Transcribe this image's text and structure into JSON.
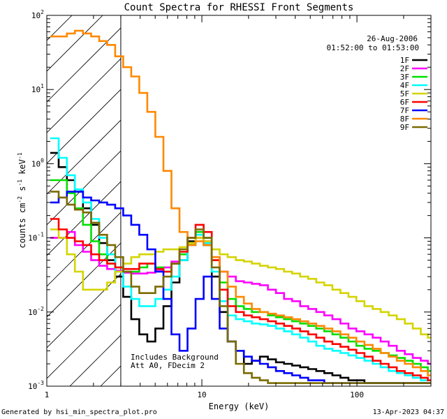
{
  "chart_data": {
    "type": "line",
    "title": "Count Spectra for RHESSI Front Segments",
    "xlabel": "Energy (keV)",
    "ylabel_parts": [
      "counts cm",
      "-2",
      " s",
      "-1",
      " keV",
      "-1"
    ],
    "x_scale": "log",
    "y_scale": "log",
    "xlim": [
      1,
      300
    ],
    "ylim": [
      0.001,
      100
    ],
    "x_ticks": [
      {
        "value": 1,
        "label": "1"
      },
      {
        "value": 10,
        "label": "10"
      },
      {
        "value": 100,
        "label": "100"
      }
    ],
    "y_ticks": [
      {
        "value": 0.001,
        "base": "10",
        "exp": "-3"
      },
      {
        "value": 0.01,
        "base": "10",
        "exp": "-2"
      },
      {
        "value": 0.1,
        "base": "10",
        "exp": "-1"
      },
      {
        "value": 1,
        "base": "10",
        "exp": "0"
      },
      {
        "value": 10,
        "base": "10",
        "exp": "1"
      },
      {
        "value": 100,
        "base": "10",
        "exp": "2"
      }
    ],
    "date": "26-Aug-2006",
    "time_range": "01:52:00 to 01:53:00",
    "hatched_region_keV": [
      1,
      3
    ],
    "annotation_lines": [
      "Includes Background",
      "Att A0, FDecim 2"
    ],
    "energies": [
      1.12,
      1.27,
      1.43,
      1.61,
      1.82,
      2.05,
      2.31,
      2.6,
      2.93,
      3.3,
      3.72,
      4.19,
      4.72,
      5.32,
      6,
      6.76,
      7.62,
      8.58,
      9.67,
      10.9,
      12.3,
      13.8,
      15.6,
      17.6,
      19.8,
      22.3,
      25.1,
      28.3,
      31.9,
      36,
      40.5,
      45.7,
      51.5,
      58,
      65.4,
      73.7,
      83,
      93.6,
      105,
      119,
      134,
      151,
      170,
      192,
      216,
      243,
      274,
      300
    ],
    "series": [
      {
        "name": "1F",
        "color": "#000000",
        "values": [
          1.4,
          0.9,
          0.6,
          0.42,
          0.25,
          0.15,
          0.085,
          0.05,
          0.03,
          0.016,
          0.008,
          0.005,
          0.004,
          0.006,
          0.012,
          0.025,
          0.05,
          0.09,
          0.12,
          0.08,
          0.03,
          0.01,
          0.004,
          0.003,
          0.002,
          0.0022,
          0.0025,
          0.0023,
          0.0021,
          0.002,
          0.0019,
          0.0018,
          0.0017,
          0.0016,
          0.0015,
          0.0014,
          0.0013,
          0.0012,
          0.0012,
          0.0011,
          0.0011,
          0.0011,
          0.0011,
          0.0011,
          0.0011,
          0.0011,
          0.0011,
          0.0011
        ]
      },
      {
        "name": "2F",
        "color": "#ff00ff",
        "values": [
          0.1,
          0.1,
          0.12,
          0.08,
          0.065,
          0.05,
          0.042,
          0.038,
          0.036,
          0.034,
          0.033,
          0.033,
          0.034,
          0.037,
          0.04,
          0.048,
          0.06,
          0.08,
          0.1,
          0.09,
          0.055,
          0.035,
          0.03,
          0.026,
          0.025,
          0.024,
          0.023,
          0.02,
          0.018,
          0.015,
          0.014,
          0.012,
          0.011,
          0.01,
          0.009,
          0.008,
          0.007,
          0.006,
          0.0055,
          0.005,
          0.0045,
          0.004,
          0.0035,
          0.003,
          0.0027,
          0.0024,
          0.0022,
          0.002
        ]
      },
      {
        "name": "3F",
        "color": "#00e000",
        "values": [
          0.6,
          0.6,
          0.4,
          0.25,
          0.15,
          0.09,
          0.06,
          0.045,
          0.04,
          0.035,
          0.035,
          0.04,
          0.045,
          0.04,
          0.035,
          0.045,
          0.06,
          0.085,
          0.12,
          0.1,
          0.05,
          0.025,
          0.015,
          0.012,
          0.011,
          0.01,
          0.01,
          0.009,
          0.0085,
          0.008,
          0.0075,
          0.007,
          0.0065,
          0.006,
          0.0055,
          0.005,
          0.0045,
          0.004,
          0.0035,
          0.0032,
          0.003,
          0.0028,
          0.0026,
          0.0024,
          0.0022,
          0.002,
          0.0018,
          0.0016
        ]
      },
      {
        "name": "4F",
        "color": "#00ffff",
        "values": [
          2.2,
          1.2,
          0.7,
          0.45,
          0.3,
          0.18,
          0.1,
          0.06,
          0.035,
          0.022,
          0.015,
          0.012,
          0.012,
          0.015,
          0.02,
          0.03,
          0.05,
          0.08,
          0.11,
          0.085,
          0.035,
          0.014,
          0.009,
          0.008,
          0.0075,
          0.007,
          0.0068,
          0.0065,
          0.006,
          0.0055,
          0.005,
          0.0045,
          0.004,
          0.0035,
          0.0032,
          0.003,
          0.0028,
          0.0026,
          0.0024,
          0.0022,
          0.002,
          0.0018,
          0.0016,
          0.0015,
          0.0014,
          0.0013,
          0.0012,
          0.0012
        ]
      },
      {
        "name": "5F",
        "color": "#d4d400",
        "values": [
          0.13,
          0.1,
          0.06,
          0.035,
          0.02,
          0.02,
          0.02,
          0.025,
          0.035,
          0.045,
          0.055,
          0.06,
          0.06,
          0.065,
          0.07,
          0.07,
          0.075,
          0.085,
          0.1,
          0.09,
          0.07,
          0.06,
          0.055,
          0.05,
          0.048,
          0.045,
          0.042,
          0.04,
          0.038,
          0.035,
          0.033,
          0.03,
          0.028,
          0.025,
          0.023,
          0.02,
          0.018,
          0.016,
          0.014,
          0.012,
          0.011,
          0.01,
          0.009,
          0.008,
          0.007,
          0.006,
          0.005,
          0.0045
        ]
      },
      {
        "name": "6F",
        "color": "#ff0000",
        "values": [
          0.18,
          0.13,
          0.1,
          0.09,
          0.08,
          0.06,
          0.05,
          0.045,
          0.04,
          0.038,
          0.038,
          0.045,
          0.045,
          0.038,
          0.035,
          0.045,
          0.065,
          0.1,
          0.15,
          0.12,
          0.05,
          0.02,
          0.012,
          0.01,
          0.009,
          0.0085,
          0.008,
          0.0075,
          0.007,
          0.0065,
          0.006,
          0.0055,
          0.005,
          0.0045,
          0.004,
          0.0037,
          0.0034,
          0.0031,
          0.0028,
          0.0025,
          0.0022,
          0.002,
          0.0018,
          0.0016,
          0.0015,
          0.0014,
          0.0013,
          0.0012
        ]
      },
      {
        "name": "7F",
        "color": "#0000ff",
        "values": [
          0.3,
          0.35,
          0.42,
          0.42,
          0.35,
          0.32,
          0.3,
          0.28,
          0.25,
          0.2,
          0.15,
          0.11,
          0.07,
          0.035,
          0.015,
          0.005,
          0.003,
          0.006,
          0.015,
          0.03,
          0.015,
          0.006,
          0.004,
          0.003,
          0.0025,
          0.0022,
          0.002,
          0.0018,
          0.0016,
          0.0015,
          0.0014,
          0.0013,
          0.0012,
          0.0012,
          0.0011,
          0.0011,
          0.0011,
          0.0011,
          0.0011,
          0.0011,
          0.0011,
          0.0011,
          0.0011,
          0.0011,
          0.0011,
          0.0011,
          0.0011,
          0.0011
        ]
      },
      {
        "name": "8F",
        "color": "#ff8800",
        "values": [
          52,
          52,
          57,
          62,
          57,
          52,
          45,
          40,
          28,
          20,
          15,
          9,
          5,
          2.3,
          0.8,
          0.25,
          0.12,
          0.08,
          0.09,
          0.08,
          0.055,
          0.035,
          0.022,
          0.016,
          0.013,
          0.011,
          0.01,
          0.0095,
          0.009,
          0.0085,
          0.008,
          0.0075,
          0.007,
          0.0065,
          0.006,
          0.0055,
          0.005,
          0.0045,
          0.004,
          0.0036,
          0.0032,
          0.0028,
          0.0025,
          0.0022,
          0.002,
          0.0018,
          0.0016,
          0.0014
        ]
      },
      {
        "name": "9F",
        "color": "#7a6b00",
        "values": [
          0.42,
          0.35,
          0.28,
          0.24,
          0.22,
          0.16,
          0.11,
          0.08,
          0.055,
          0.035,
          0.022,
          0.018,
          0.018,
          0.022,
          0.03,
          0.045,
          0.07,
          0.1,
          0.13,
          0.1,
          0.04,
          0.012,
          0.004,
          0.002,
          0.0015,
          0.0013,
          0.0012,
          0.0011,
          0.0011,
          0.0011,
          0.0011,
          0.0011,
          0.0011,
          0.0011,
          0.0011,
          0.0011,
          0.0011,
          0.0011,
          0.0011,
          0.0011,
          0.0011,
          0.0011,
          0.0011,
          0.0011,
          0.0011,
          0.0011,
          0.0011,
          0.0011
        ]
      }
    ]
  },
  "footer": {
    "left": "Generated by hsi_min_spectra_plot.pro",
    "right": "13-Apr-2023 04:37"
  }
}
